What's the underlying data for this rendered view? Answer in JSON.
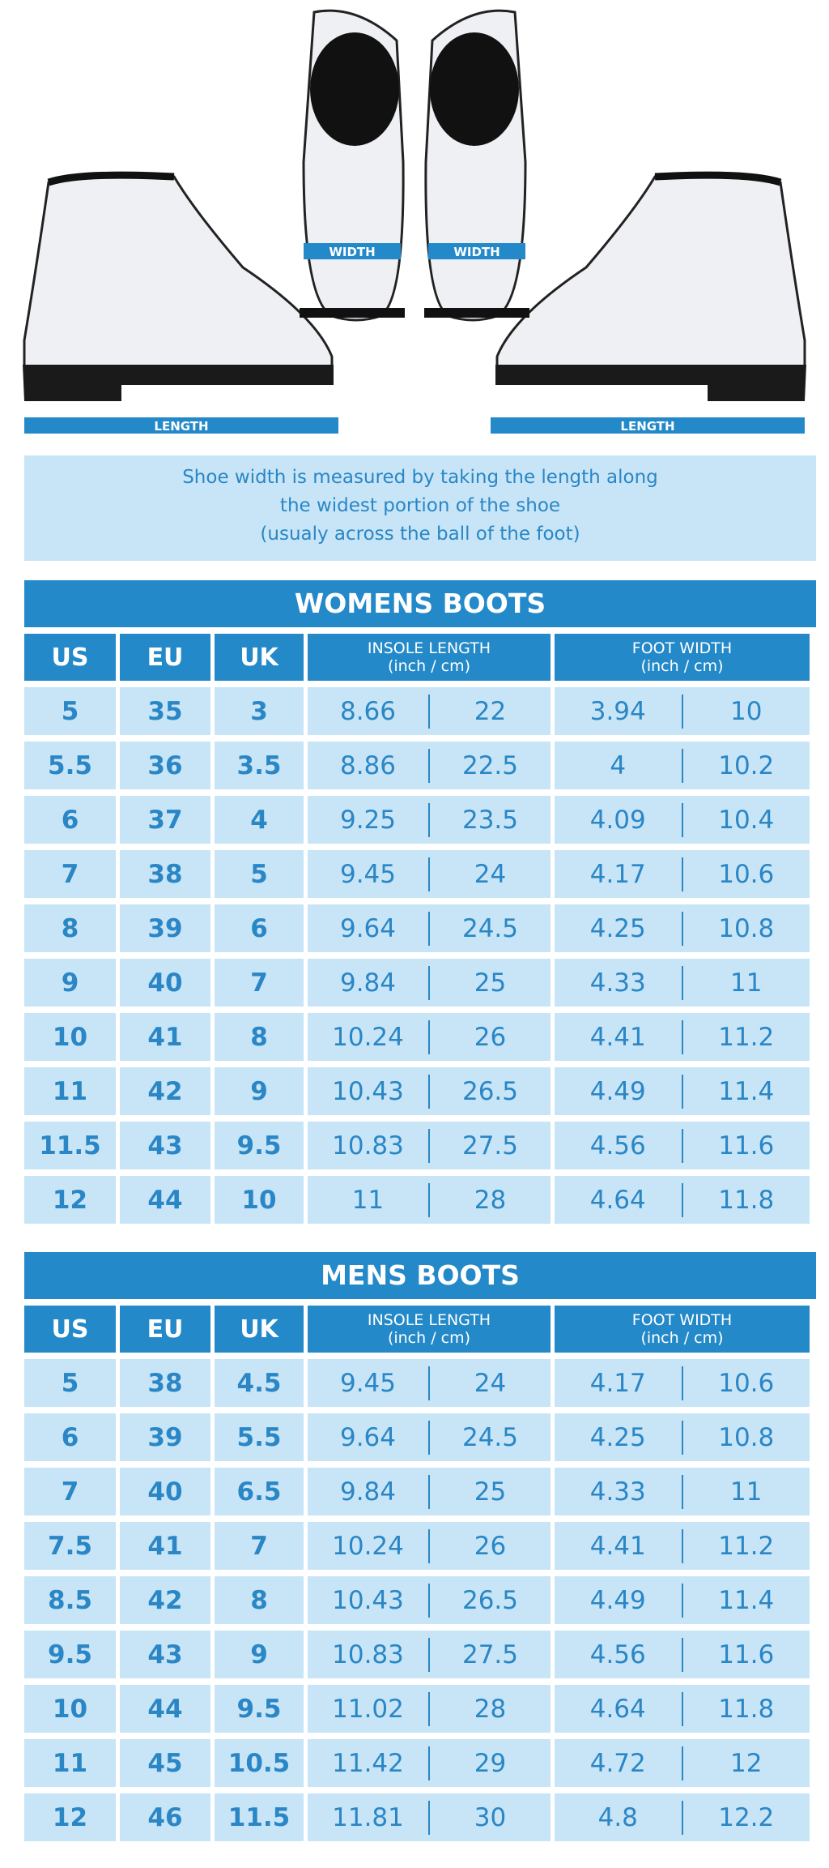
{
  "colors": {
    "primary": "#2389c9",
    "light": "#c7e5f7",
    "text": "#2a86c5"
  },
  "diagram": {
    "width_label": "WIDTH",
    "length_label": "LENGTH"
  },
  "info": {
    "lines": [
      "Shoe width is measured by taking the length along",
      "the widest portion of the shoe",
      "(usualy across the ball of the foot)"
    ]
  },
  "headers": {
    "us": "US",
    "eu": "EU",
    "uk": "UK",
    "insole": "INSOLE LENGTH",
    "width": "FOOT WIDTH",
    "units": "(inch / cm)"
  },
  "tables": [
    {
      "title": "WOMENS BOOTS",
      "rows": [
        [
          "5",
          "35",
          "3",
          "8.66",
          "22",
          "3.94",
          "10"
        ],
        [
          "5.5",
          "36",
          "3.5",
          "8.86",
          "22.5",
          "4",
          "10.2"
        ],
        [
          "6",
          "37",
          "4",
          "9.25",
          "23.5",
          "4.09",
          "10.4"
        ],
        [
          "7",
          "38",
          "5",
          "9.45",
          "24",
          "4.17",
          "10.6"
        ],
        [
          "8",
          "39",
          "6",
          "9.64",
          "24.5",
          "4.25",
          "10.8"
        ],
        [
          "9",
          "40",
          "7",
          "9.84",
          "25",
          "4.33",
          "11"
        ],
        [
          "10",
          "41",
          "8",
          "10.24",
          "26",
          "4.41",
          "11.2"
        ],
        [
          "11",
          "42",
          "9",
          "10.43",
          "26.5",
          "4.49",
          "11.4"
        ],
        [
          "11.5",
          "43",
          "9.5",
          "10.83",
          "27.5",
          "4.56",
          "11.6"
        ],
        [
          "12",
          "44",
          "10",
          "11",
          "28",
          "4.64",
          "11.8"
        ]
      ]
    },
    {
      "title": "MENS BOOTS",
      "rows": [
        [
          "5",
          "38",
          "4.5",
          "9.45",
          "24",
          "4.17",
          "10.6"
        ],
        [
          "6",
          "39",
          "5.5",
          "9.64",
          "24.5",
          "4.25",
          "10.8"
        ],
        [
          "7",
          "40",
          "6.5",
          "9.84",
          "25",
          "4.33",
          "11"
        ],
        [
          "7.5",
          "41",
          "7",
          "10.24",
          "26",
          "4.41",
          "11.2"
        ],
        [
          "8.5",
          "42",
          "8",
          "10.43",
          "26.5",
          "4.49",
          "11.4"
        ],
        [
          "9.5",
          "43",
          "9",
          "10.83",
          "27.5",
          "4.56",
          "11.6"
        ],
        [
          "10",
          "44",
          "9.5",
          "11.02",
          "28",
          "4.64",
          "11.8"
        ],
        [
          "11",
          "45",
          "10.5",
          "11.42",
          "29",
          "4.72",
          "12"
        ],
        [
          "12",
          "46",
          "11.5",
          "11.81",
          "30",
          "4.8",
          "12.2"
        ]
      ]
    }
  ]
}
